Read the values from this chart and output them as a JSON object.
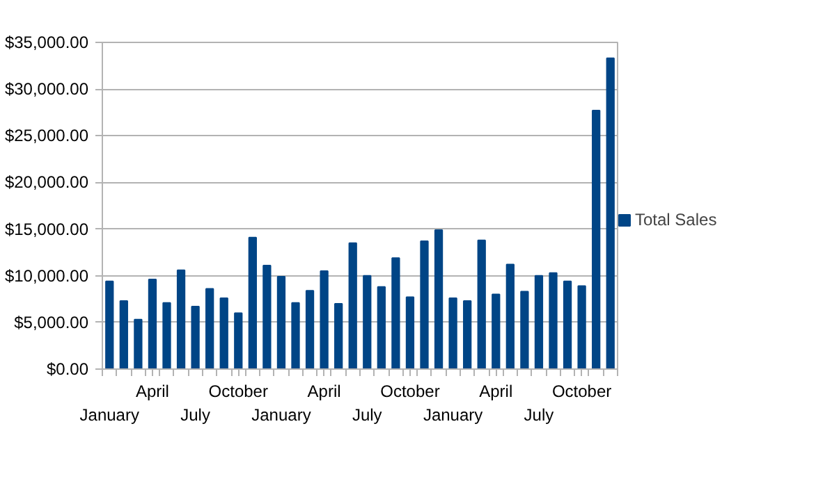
{
  "chart_data": {
    "type": "bar",
    "categories": [
      "January",
      null,
      null,
      "April",
      null,
      null,
      "July",
      null,
      null,
      "October",
      null,
      null,
      "January",
      null,
      null,
      "April",
      null,
      null,
      "July",
      null,
      null,
      "October",
      null,
      null,
      "January",
      null,
      null,
      "April",
      null,
      null,
      "July",
      null,
      null,
      "October",
      null,
      null
    ],
    "series": [
      {
        "name": "Total Sales",
        "color": "#004586",
        "values": [
          9400,
          7300,
          5300,
          9600,
          7100,
          10600,
          6700,
          8600,
          7600,
          6000,
          14100,
          11100,
          9900,
          7100,
          8400,
          10500,
          7000,
          13500,
          10000,
          8800,
          11900,
          7700,
          13700,
          14900,
          7600,
          7300,
          13800,
          8000,
          11200,
          8300,
          10000,
          10300,
          9400,
          8900,
          27700,
          33300
        ]
      }
    ],
    "ylim": [
      0,
      35000
    ],
    "yticks": [
      {
        "value": 0,
        "label": "$0.00"
      },
      {
        "value": 5000,
        "label": "$5,000.00"
      },
      {
        "value": 10000,
        "label": "$10,000.00"
      },
      {
        "value": 15000,
        "label": "$15,000.00"
      },
      {
        "value": 20000,
        "label": "$20,000.00"
      },
      {
        "value": 25000,
        "label": "$25,000.00"
      },
      {
        "value": 30000,
        "label": "$30,000.00"
      },
      {
        "value": 35000,
        "label": "$35,000.00"
      }
    ],
    "grid": "y",
    "legend": "right"
  }
}
